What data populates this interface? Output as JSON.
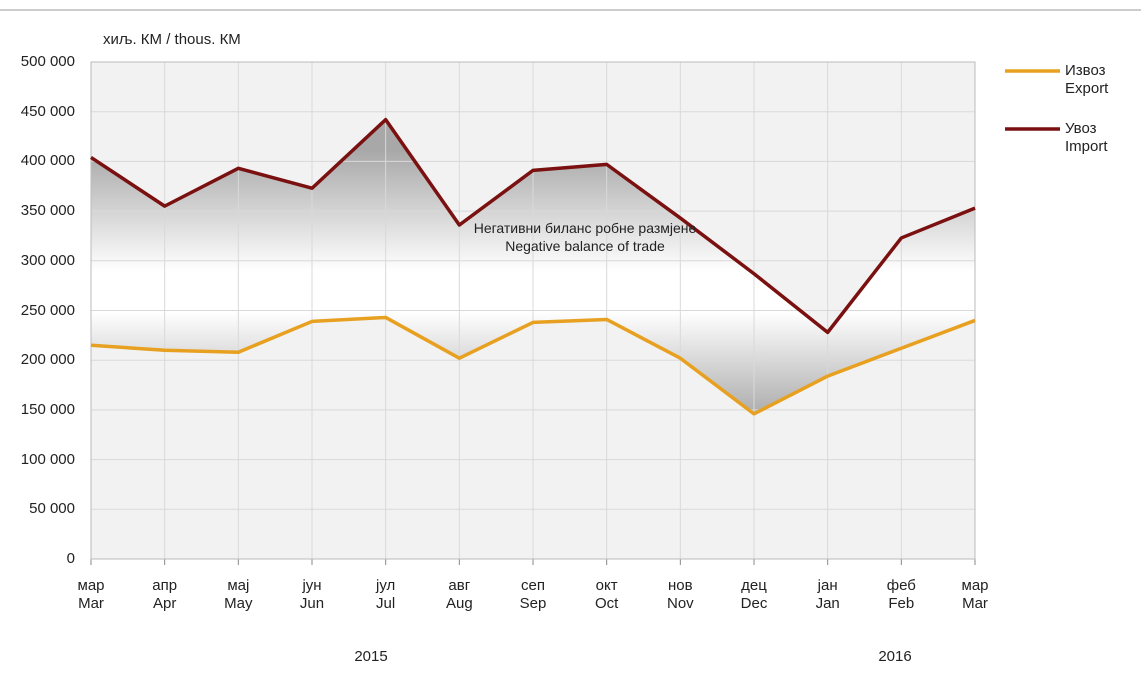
{
  "chart_data": {
    "type": "line",
    "ylabel": "хиљ. КМ / thous. КМ",
    "annotation": "Негативни биланс робне размјене\nNegative balance of trade",
    "categories": [
      "мар\nMar",
      "апр\nApr",
      "мај\nMay",
      "јун\nJun",
      "јул\nJul",
      "авг\nAug",
      "сеп\nSep",
      "окт\nOct",
      "нов\nNov",
      "дец\nDec",
      "јан\nJan",
      "феб\nFeb",
      "мар\nMar"
    ],
    "years": [
      "2015",
      "2016"
    ],
    "series": [
      {
        "name": "Извоз\nExport",
        "color": "#e8a020",
        "values": [
          215000,
          210000,
          208000,
          239000,
          243000,
          202000,
          238000,
          241000,
          202000,
          146000,
          184000,
          212000,
          240000
        ]
      },
      {
        "name": "Увоз\nImport",
        "color": "#7a1010",
        "values": [
          404000,
          355000,
          393000,
          373000,
          442000,
          336000,
          391000,
          397000,
          343000,
          287000,
          228000,
          323000,
          353000
        ]
      }
    ],
    "ylim": [
      0,
      500000
    ],
    "yticks": [
      0,
      {
        "value": 50000,
        "label": "50 000"
      },
      {
        "value": 100000,
        "label": "100 000"
      },
      {
        "value": 150000,
        "label": "150 000"
      },
      {
        "value": 200000,
        "label": "200 000"
      },
      {
        "value": 250000,
        "label": "250 000"
      },
      {
        "value": 300000,
        "label": "300 000"
      },
      {
        "value": 350000,
        "label": "350 000"
      },
      {
        "value": 400000,
        "label": "400 000"
      },
      {
        "value": 450000,
        "label": "450 000"
      },
      {
        "value": 500000,
        "label": "500 000"
      }
    ],
    "grid": true
  }
}
